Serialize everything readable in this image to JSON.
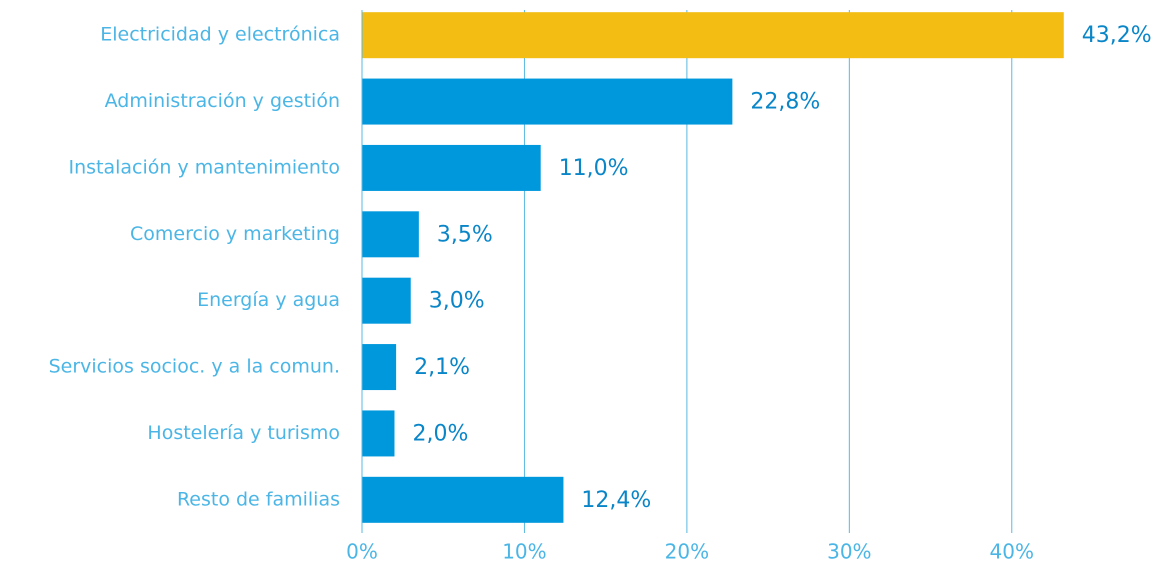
{
  "chart_data": {
    "type": "hbar",
    "categories": [
      "Electricidad y electrónica",
      "Administración y gestión",
      "Instalación y mantenimiento",
      "Comercio y marketing",
      "Energía y agua",
      "Servicios socioc. y a la comun.",
      "Hostelería y turismo",
      "Resto de familias"
    ],
    "values": [
      43.2,
      22.8,
      11.0,
      3.5,
      3.0,
      2.1,
      2.0,
      12.4
    ],
    "value_labels": [
      "43,2%",
      "22,8%",
      "11,0%",
      "3,5%",
      "3,0%",
      "2,1%",
      "2,0%",
      "12,4%"
    ],
    "colors": [
      "#f3bd13",
      "#0098dc",
      "#0098dc",
      "#0098dc",
      "#0098dc",
      "#0098dc",
      "#0098dc",
      "#0098dc"
    ],
    "xlim": [
      0,
      45
    ],
    "xticks": [
      {
        "value": 0,
        "label": "0%"
      },
      {
        "value": 10,
        "label": "10%"
      },
      {
        "value": 20,
        "label": "20%"
      },
      {
        "value": 30,
        "label": "30%"
      },
      {
        "value": 40,
        "label": "40%"
      }
    ],
    "grid": true
  }
}
